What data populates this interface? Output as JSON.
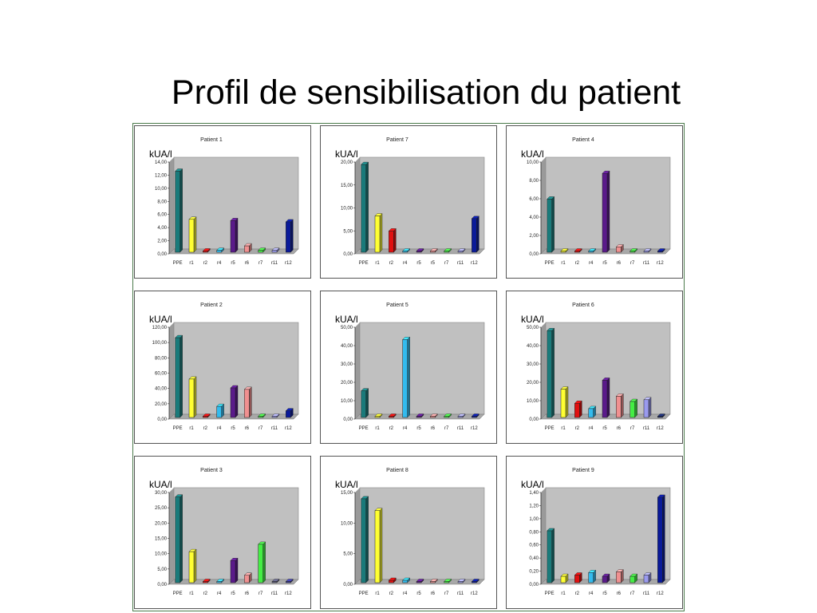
{
  "slide": {
    "title": "Profil de sensibilisation du patient"
  },
  "colors": {
    "series": [
      "#1a7a7a",
      "#ffff33",
      "#e01010",
      "#33bbee",
      "#5a1a8a",
      "#f09090",
      "#44ee44",
      "#9a9aee",
      "#0a1a99",
      "#1a2a6a",
      "#5a5a7a",
      "#3a3a99"
    ],
    "plot_bg": "#c0c0c0",
    "floor": "#a8a8a8"
  },
  "chart_data": [
    {
      "type": "bar",
      "title": "Patient 1",
      "ylabel": "kUA/l",
      "ylim": [
        0,
        14
      ],
      "ticks": [
        "14,00",
        "12,00",
        "10,00",
        "8,00",
        "6,00",
        "4,00",
        "2,00",
        "0,00"
      ],
      "categories": [
        "PPE",
        "r1",
        "r2",
        "r4",
        "r5",
        "r6",
        "r7",
        "r11",
        "r12"
      ],
      "values": [
        12.8,
        5.2,
        0.2,
        0.3,
        5.0,
        1.0,
        0.3,
        0.3,
        4.8
      ],
      "color_index": [
        0,
        1,
        2,
        3,
        4,
        5,
        6,
        7,
        8
      ]
    },
    {
      "type": "bar",
      "title": "Patient 7",
      "ylabel": "kUA/l",
      "ylim": [
        0,
        20
      ],
      "ticks": [
        "20,00",
        "15,00",
        "10,00",
        "5,00",
        "0,00"
      ],
      "categories": [
        "PPE",
        "r1",
        "r2",
        "r4",
        "r5",
        "r5",
        "r7",
        "r11",
        "r12"
      ],
      "values": [
        19.8,
        8.2,
        4.8,
        0.2,
        0.1,
        0.1,
        0.2,
        0.1,
        7.6
      ],
      "color_index": [
        0,
        1,
        2,
        3,
        4,
        5,
        6,
        7,
        8
      ]
    },
    {
      "type": "bar",
      "title": "Patient 4",
      "ylabel": "kUA/l",
      "ylim": [
        0,
        10
      ],
      "ticks": [
        "10,00",
        "8,00",
        "6,00",
        "4,00",
        "2,00",
        "0,00"
      ],
      "categories": [
        "PPE",
        "r1",
        "r2",
        "r4",
        "r5",
        "r6",
        "r7",
        "r11",
        "r12"
      ],
      "values": [
        6.0,
        0.1,
        0.1,
        0.1,
        8.9,
        0.6,
        0.1,
        0.1,
        0.1
      ],
      "color_index": [
        0,
        1,
        2,
        3,
        4,
        5,
        6,
        7,
        8
      ]
    },
    {
      "type": "bar",
      "title": "Patient 2",
      "ylabel": "kUA/l",
      "ylim": [
        0,
        120
      ],
      "ticks": [
        "120,00",
        "100,00",
        "80,00",
        "60,00",
        "40,00",
        "20,00",
        "0,00"
      ],
      "categories": [
        "PPE",
        "r1",
        "r2",
        "r4",
        "r5",
        "r6",
        "r7",
        "r11",
        "r12"
      ],
      "values": [
        108,
        52,
        1,
        15,
        40,
        38,
        1,
        1,
        9
      ],
      "color_index": [
        0,
        1,
        2,
        3,
        4,
        5,
        6,
        7,
        8
      ]
    },
    {
      "type": "bar",
      "title": "Patient 5",
      "ylabel": "kUA/l",
      "ylim": [
        0,
        50
      ],
      "ticks": [
        "50,00",
        "40,00",
        "30,00",
        "20,00",
        "10,00",
        "0,00"
      ],
      "categories": [
        "PPE",
        "r1",
        "r2",
        "r4",
        "r5",
        "r6",
        "r7",
        "r11",
        "r12"
      ],
      "values": [
        15,
        0.5,
        0.5,
        44,
        0.3,
        0.3,
        0.3,
        0.3,
        0.3
      ],
      "color_index": [
        0,
        1,
        2,
        3,
        4,
        5,
        6,
        7,
        8
      ]
    },
    {
      "type": "bar",
      "title": "Patient 6",
      "ylabel": "kUA/l",
      "ylim": [
        0,
        50
      ],
      "ticks": [
        "50,00",
        "40,00",
        "30,00",
        "20,00",
        "10,00",
        "0,00"
      ],
      "categories": [
        "PPE",
        "r1",
        "r2",
        "r4",
        "r5",
        "r6",
        "r7",
        "r11",
        "r12"
      ],
      "values": [
        49,
        16,
        8,
        5,
        21,
        12,
        9,
        10,
        0.3
      ],
      "color_index": [
        0,
        1,
        2,
        3,
        4,
        5,
        6,
        7,
        9
      ]
    },
    {
      "type": "bar",
      "title": "Patient 3",
      "ylabel": "kUA/l",
      "ylim": [
        0,
        30
      ],
      "ticks": [
        "30,00",
        "25,00",
        "20,00",
        "15,00",
        "10,00",
        "5,00",
        "0,00"
      ],
      "categories": [
        "PPE",
        "r1",
        "r2",
        "r4",
        "r5",
        "r6",
        "r7",
        "r11",
        "r12"
      ],
      "values": [
        29,
        10.5,
        0.3,
        0.3,
        7.5,
        2.5,
        13,
        0.3,
        0.3
      ],
      "color_index": [
        0,
        1,
        2,
        3,
        4,
        5,
        6,
        10,
        11
      ]
    },
    {
      "type": "bar",
      "title": "Patient 8",
      "ylabel": "kUA/l",
      "ylim": [
        0,
        15
      ],
      "ticks": [
        "15,00",
        "10,00",
        "5,00",
        "0,00"
      ],
      "categories": [
        "PPE",
        "r1",
        "r2",
        "r4",
        "r5",
        "r6",
        "r7",
        "r11",
        "r12"
      ],
      "values": [
        14.2,
        12.2,
        0.4,
        0.4,
        0.2,
        0.2,
        0.2,
        0.2,
        0.2
      ],
      "color_index": [
        0,
        1,
        2,
        3,
        4,
        5,
        6,
        7,
        8
      ]
    },
    {
      "type": "bar",
      "title": "Patient 9",
      "ylabel": "kUA/l",
      "ylim": [
        0,
        1.4
      ],
      "ticks": [
        "1,40",
        "1,20",
        "1,00",
        "0,80",
        "0,60",
        "0,40",
        "0,20",
        "0,00"
      ],
      "categories": [
        "PPE",
        "r1",
        "r2",
        "r4",
        "r5",
        "r6",
        "r7",
        "r11",
        "r12"
      ],
      "values": [
        0.82,
        0.1,
        0.12,
        0.16,
        0.1,
        0.17,
        0.1,
        0.12,
        1.35
      ],
      "color_index": [
        0,
        1,
        2,
        3,
        4,
        5,
        6,
        7,
        8
      ]
    }
  ]
}
